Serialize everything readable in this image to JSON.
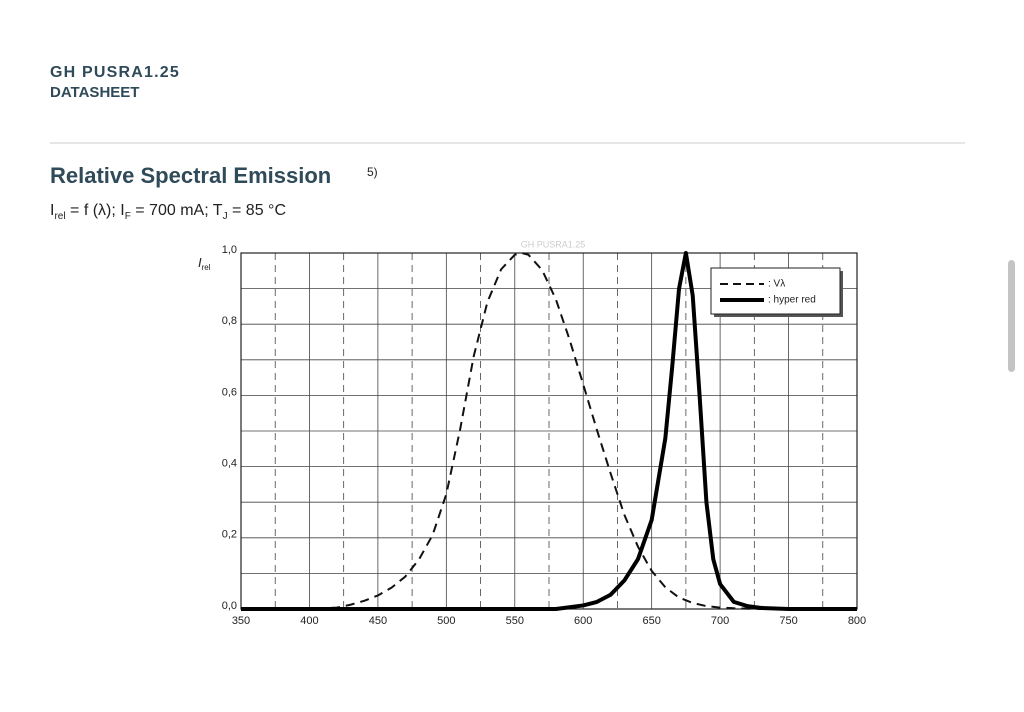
{
  "header": {
    "product": "GH PUSRA1.25",
    "doc_type": "DATASHEET"
  },
  "section": {
    "title": "Relative Spectral Emission",
    "footnote": "5)",
    "subtitle": [
      "I",
      "rel",
      " = f (λ); I",
      "F",
      " = 700 mA; T",
      "J",
      " = 85 °C"
    ]
  },
  "chart_data": {
    "type": "line",
    "watermark": "GH PUSRA1.25",
    "y_label": [
      "I",
      "rel"
    ],
    "xlim": [
      350,
      800
    ],
    "ylim": [
      0,
      1
    ],
    "xticks": [
      350,
      400,
      450,
      500,
      550,
      600,
      650,
      700,
      750,
      800
    ],
    "yticks": [
      {
        "value": 0,
        "label": "0,0"
      },
      {
        "value": 0.2,
        "label": "0,2"
      },
      {
        "value": 0.4,
        "label": "0,4"
      },
      {
        "value": 0.6,
        "label": "0,6"
      },
      {
        "value": 0.8,
        "label": "0,8"
      },
      {
        "value": 1,
        "label": "1,0"
      }
    ],
    "grid": true,
    "series": [
      {
        "name": ": Vλ",
        "color": "#111111",
        "dash": true,
        "x": [
          350,
          400,
          420,
          430,
          440,
          450,
          460,
          470,
          480,
          490,
          500,
          510,
          520,
          530,
          540,
          550,
          555,
          560,
          570,
          580,
          590,
          600,
          610,
          620,
          630,
          640,
          650,
          660,
          670,
          680,
          690,
          700,
          710,
          720,
          730,
          750,
          800
        ],
        "values": [
          0,
          0,
          0.004,
          0.012,
          0.023,
          0.038,
          0.06,
          0.091,
          0.139,
          0.208,
          0.323,
          0.503,
          0.71,
          0.862,
          0.954,
          0.995,
          1.0,
          0.995,
          0.952,
          0.87,
          0.757,
          0.631,
          0.503,
          0.381,
          0.265,
          0.175,
          0.107,
          0.061,
          0.032,
          0.017,
          0.008,
          0.004,
          0.002,
          0.001,
          0,
          0,
          0
        ]
      },
      {
        "name": ": hyper red",
        "color": "#000000",
        "dash": false,
        "x": [
          350,
          580,
          590,
          600,
          610,
          620,
          630,
          640,
          650,
          660,
          665,
          670,
          675,
          680,
          685,
          690,
          695,
          700,
          710,
          720,
          730,
          750,
          800
        ],
        "values": [
          0,
          0,
          0.005,
          0.01,
          0.02,
          0.04,
          0.08,
          0.14,
          0.25,
          0.48,
          0.68,
          0.9,
          1.0,
          0.88,
          0.6,
          0.3,
          0.14,
          0.07,
          0.02,
          0.008,
          0.003,
          0,
          0
        ]
      }
    ]
  }
}
